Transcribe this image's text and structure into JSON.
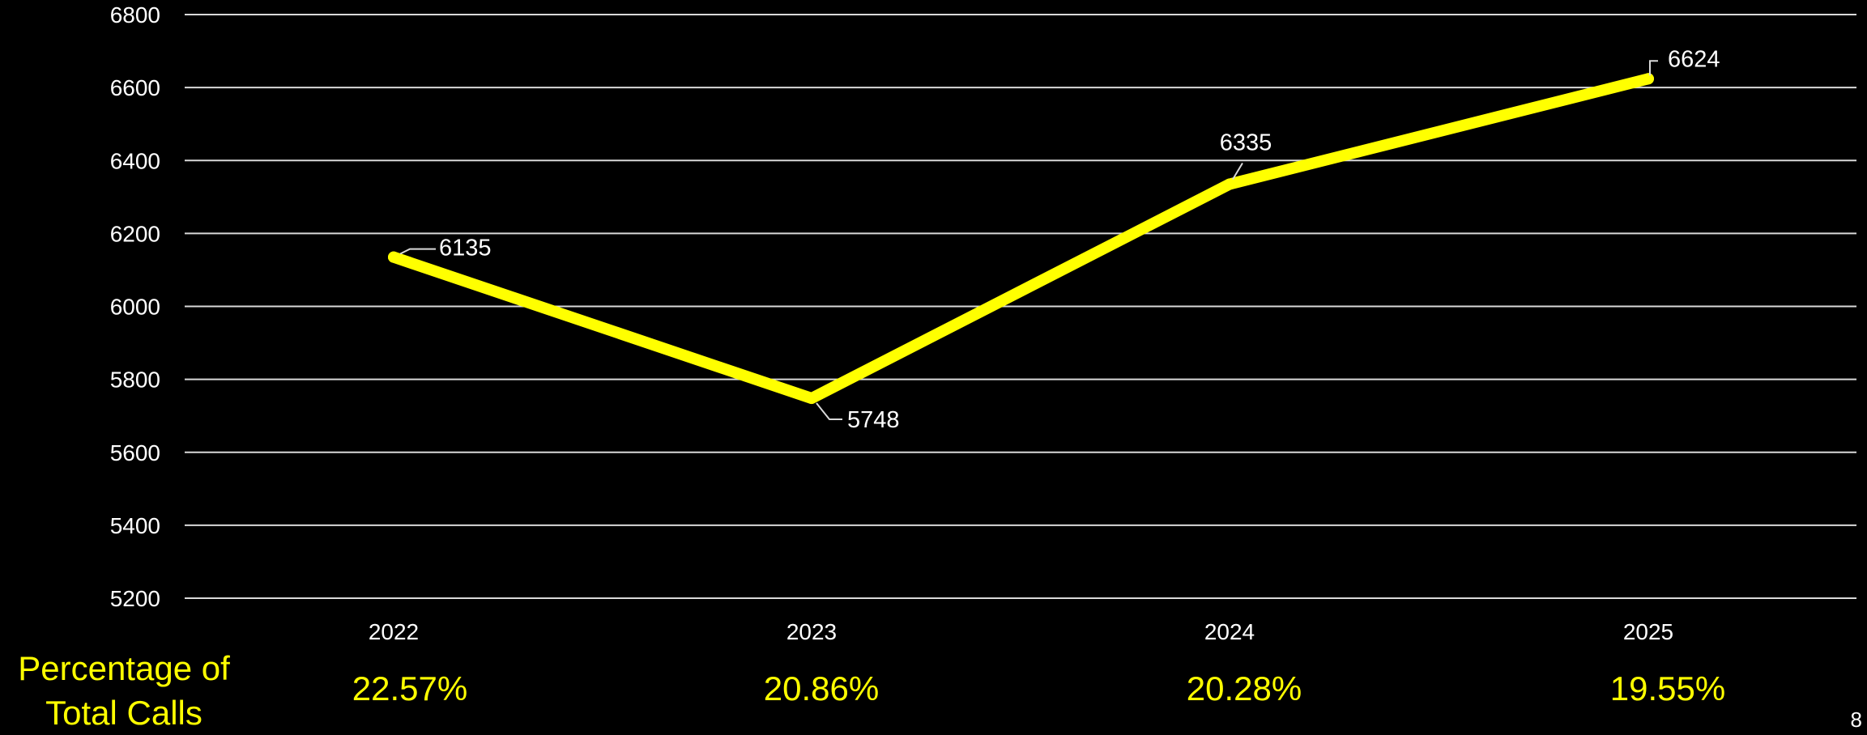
{
  "chart_data": {
    "type": "line",
    "categories": [
      "2022",
      "2023",
      "2024",
      "2025"
    ],
    "series": [
      {
        "values": [
          6135,
          5748,
          6335,
          6624
        ],
        "color": "#ffff00"
      }
    ],
    "ylim": [
      5200,
      6800
    ],
    "yticks": [
      5200,
      5400,
      5600,
      5800,
      6000,
      6200,
      6400,
      6600,
      6800
    ],
    "grid": true,
    "legend": "none",
    "data_labels": [
      "6135",
      "5748",
      "6335",
      "6624"
    ]
  },
  "percentage_row": {
    "label": "Percentage of\nTotal Calls",
    "values": [
      "22.57%",
      "20.86%",
      "20.28%",
      "19.55%"
    ],
    "color": "#ffff00"
  },
  "page_number": "8"
}
